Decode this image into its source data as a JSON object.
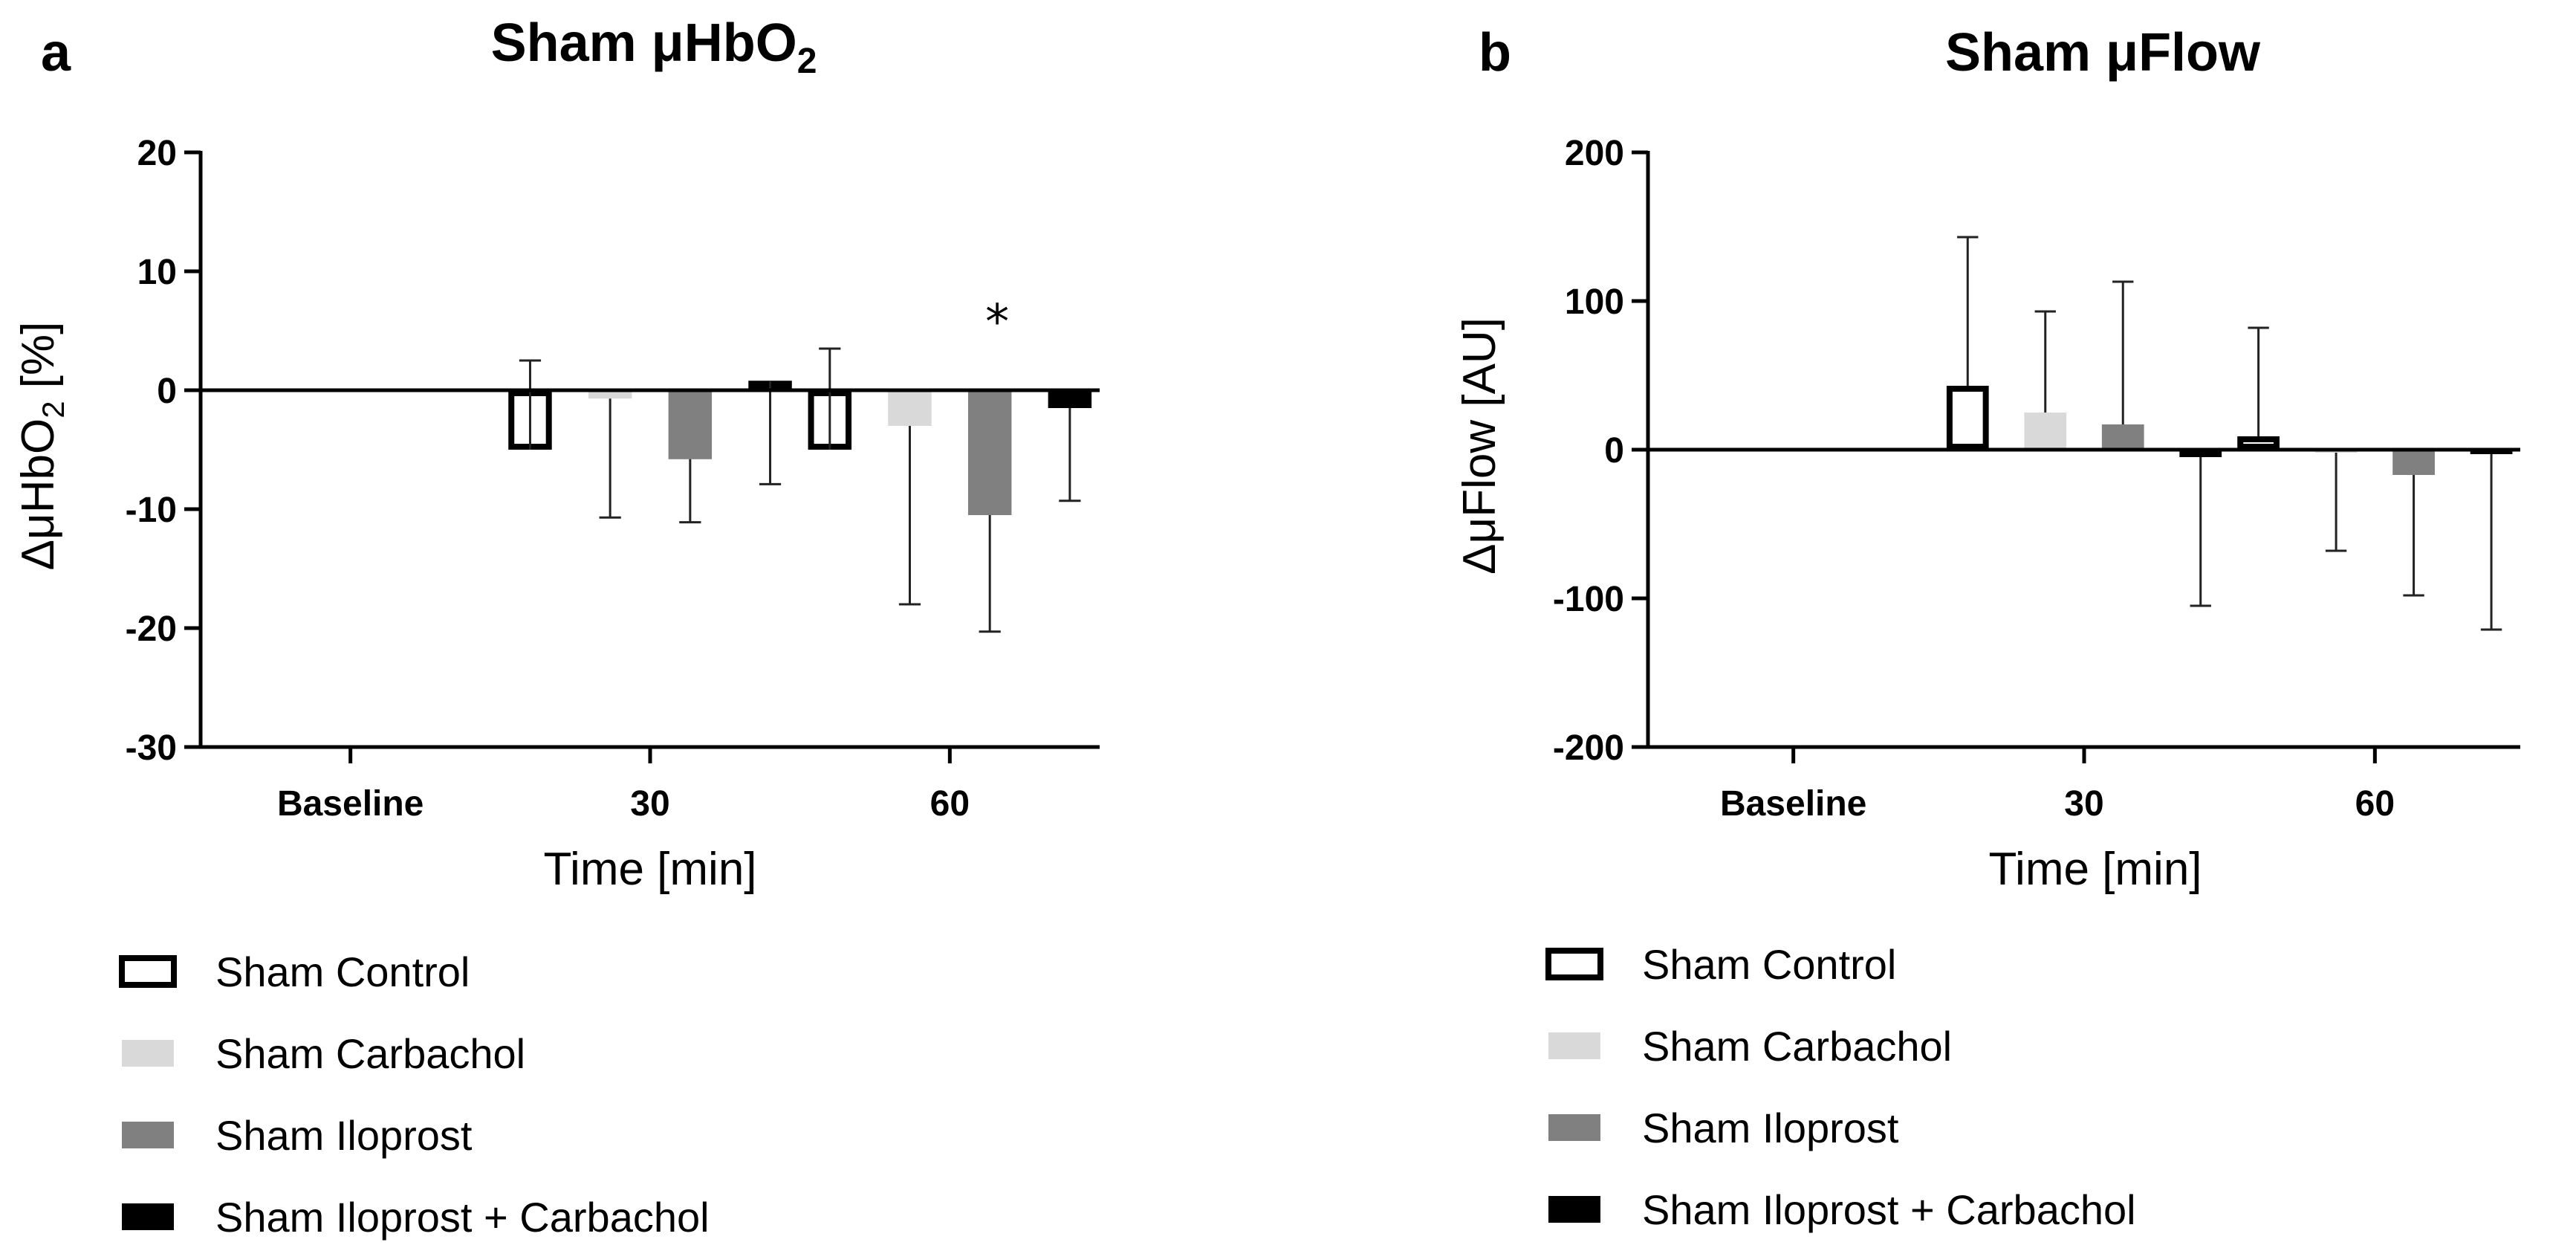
{
  "chart_data": [
    {
      "type": "bar",
      "panel_letter": "a",
      "title": "Sham μHbO",
      "title_sub": "2",
      "ylabel_prefix": "ΔμHbO",
      "ylabel_sub": "2",
      "ylabel_suffix": " [%]",
      "xlabel": "Time [min]",
      "categories": [
        "Baseline",
        "30",
        "60"
      ],
      "ylim": [
        -30,
        20
      ],
      "yticks": [
        20,
        10,
        0,
        -10,
        -20,
        -30
      ],
      "series": [
        {
          "name": "Sham Control",
          "values": [
            0,
            -5,
            -5
          ],
          "errors": [
            0,
            7.5,
            8.5
          ]
        },
        {
          "name": "Sham Carbachol",
          "values": [
            0,
            -0.7,
            -3
          ],
          "errors": [
            0,
            10,
            15
          ]
        },
        {
          "name": "Sham Iloprost",
          "values": [
            0,
            -5.8,
            -10.5
          ],
          "errors": [
            0,
            5.3,
            9.8
          ]
        },
        {
          "name": "Sham Iloprost + Carbachol",
          "values": [
            0,
            0.8,
            -1.5
          ],
          "errors": [
            0,
            8.7,
            7.8
          ]
        }
      ],
      "error_direction": [
        "up",
        "up",
        "down",
        "down",
        "down",
        "down",
        "down",
        "down"
      ],
      "annotations": [
        {
          "text": "*",
          "category": "60",
          "series": "Sham Iloprost"
        }
      ],
      "legend": "bottom-left"
    },
    {
      "type": "bar",
      "panel_letter": "b",
      "title": "Sham μFlow",
      "ylabel": "ΔμFlow [AU]",
      "xlabel": "Time [min]",
      "categories": [
        "Baseline",
        "30",
        "60"
      ],
      "ylim": [
        -200,
        200
      ],
      "yticks": [
        200,
        100,
        0,
        -100,
        -200
      ],
      "series": [
        {
          "name": "Sham Control",
          "values": [
            0,
            43,
            9
          ],
          "errors": [
            0,
            100,
            73
          ]
        },
        {
          "name": "Sham Carbachol",
          "values": [
            0,
            25,
            -2
          ],
          "errors": [
            0,
            68,
            66
          ]
        },
        {
          "name": "Sham Iloprost",
          "values": [
            0,
            17,
            -17
          ],
          "errors": [
            0,
            96,
            81
          ]
        },
        {
          "name": "Sham Iloprost + Carbachol",
          "values": [
            0,
            -5,
            -3
          ],
          "errors": [
            0,
            100,
            118
          ]
        }
      ],
      "legend": "bottom-left"
    }
  ],
  "colors": {
    "Sham Control": "#ffffff",
    "Sham Carbachol": "#d9d9d9",
    "Sham Iloprost": "#808080",
    "Sham Iloprost + Carbachol": "#000000"
  }
}
